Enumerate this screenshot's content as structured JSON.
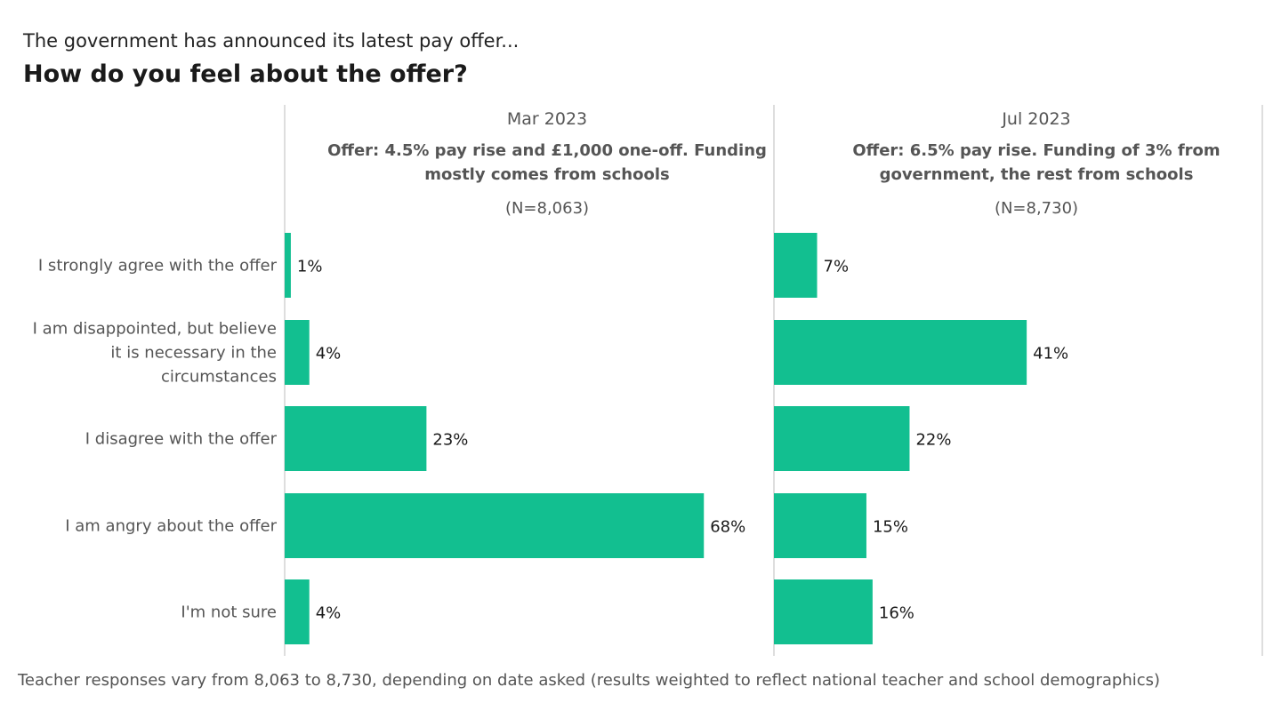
{
  "header": {
    "subtitle": "The government has announced its latest pay offer...",
    "title": "How do you feel about the offer?"
  },
  "chart_data": {
    "type": "bar",
    "orientation": "horizontal",
    "bar_color": "#12bf90",
    "categories": [
      "I strongly agree with the offer",
      "I am disappointed, but believe it is necessary in the circumstances",
      "I disagree with the offer",
      "I am angry about the offer",
      "I'm not sure"
    ],
    "category_lines": [
      [
        "I strongly agree with the offer"
      ],
      [
        "I am disappointed, but believe",
        "it is necessary in the",
        "circumstances"
      ],
      [
        "I disagree with the offer"
      ],
      [
        "I am angry about the offer"
      ],
      [
        "I'm not sure"
      ]
    ],
    "value_unit": "%",
    "panels": [
      {
        "period": "Mar 2023",
        "offer_lines": [
          "Offer: 4.5% pay rise and £1,000 one-off. Funding",
          "mostly comes from schools"
        ],
        "n_label": "(N=8,063)",
        "values": [
          1,
          4,
          23,
          68,
          4
        ]
      },
      {
        "period": "Jul 2023",
        "offer_lines": [
          "Offer: 6.5% pay rise. Funding of 3% from",
          "government, the rest from schools"
        ],
        "n_label": "(N=8,730)",
        "values": [
          7,
          41,
          22,
          15,
          16
        ]
      }
    ]
  },
  "footnote": "Teacher responses vary from 8,063 to 8,730, depending on date asked (results weighted to reflect national teacher and school demographics)"
}
